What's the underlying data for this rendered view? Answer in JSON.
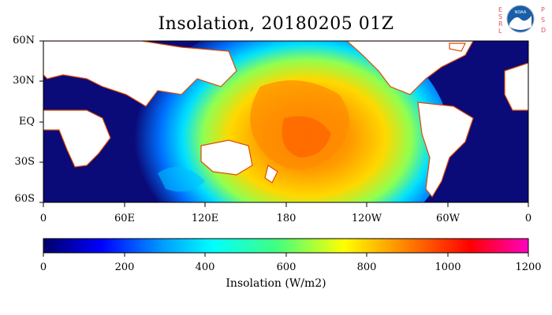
{
  "title": "Insolation, 20180205 01Z",
  "logo": {
    "agency_letters_left": "ESRL",
    "agency_letters_right": "PSD",
    "emblem_text": "NOAA"
  },
  "map": {
    "lat_labels": [
      "60N",
      "30N",
      "EQ",
      "30S",
      "60S"
    ],
    "lon_labels": [
      "0",
      "60E",
      "120E",
      "180",
      "120W",
      "60W",
      "0"
    ]
  },
  "colorbar": {
    "title": "Insolation (W/m2)",
    "tick_labels": [
      "0",
      "200",
      "400",
      "600",
      "800",
      "1000",
      "1200"
    ],
    "range": [
      0,
      1200
    ],
    "colors": [
      "#00006a",
      "#0000ff",
      "#00a0ff",
      "#00ffff",
      "#40ff80",
      "#ffff00",
      "#ff8000",
      "#ff0000",
      "#ff00c0"
    ]
  },
  "colors": {
    "night": "#0a0a78",
    "land": "#ffffff",
    "coast": "#e04a00"
  }
}
